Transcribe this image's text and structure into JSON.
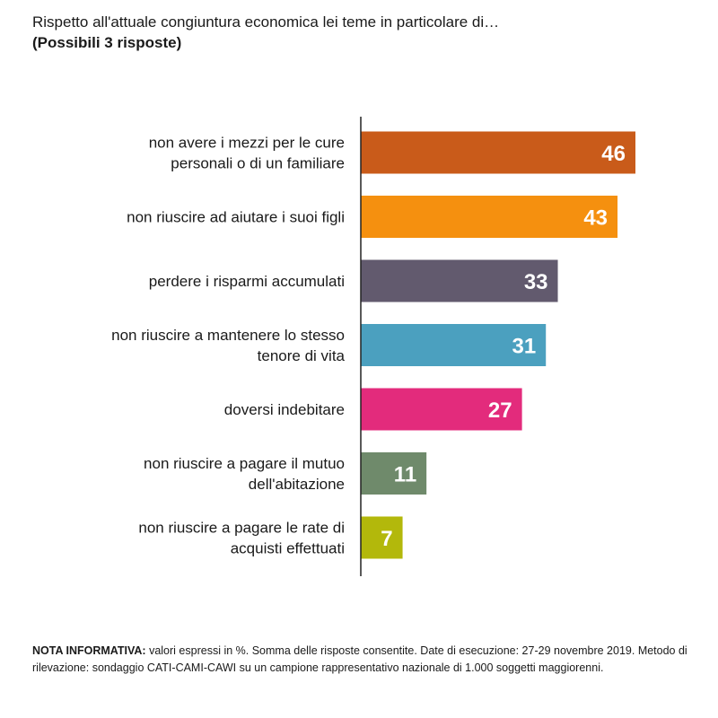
{
  "chart_data": {
    "type": "bar",
    "orientation": "horizontal",
    "title": "Rispetto all'attuale congiuntura economica lei teme in particolare di…",
    "subtitle": "(Possibili 3 risposte)",
    "categories": [
      [
        "non avere i mezzi per le cure",
        "personali o di un familiare"
      ],
      [
        "non riuscire ad aiutare i suoi figli"
      ],
      [
        "perdere i risparmi accumulati"
      ],
      [
        "non riuscire a mantenere lo stesso",
        "tenore di vita"
      ],
      [
        "doversi indebitare"
      ],
      [
        "non riuscire a pagare il mutuo",
        "dell'abitazione"
      ],
      [
        "non riuscire a pagare le rate di",
        "acquisti effettuati"
      ]
    ],
    "values": [
      46,
      43,
      33,
      31,
      27,
      11,
      7
    ],
    "colors": [
      "#c95b1a",
      "#f5900f",
      "#625a6e",
      "#4ba0bf",
      "#e32b7c",
      "#6f8a6b",
      "#b3b80b"
    ],
    "xlim": [
      0,
      46
    ],
    "grid": false,
    "legend": "none"
  },
  "note": {
    "label": "NOTA INFORMATIVA:",
    "text": " valori espressi in %. Somma delle risposte consentite. Date di esecuzione: 27-29 novembre 2019. Metodo di rilevazione: sondaggio CATI-CAMI-CAWI su un campione rappresentativo nazionale di 1.000 soggetti maggiorenni."
  }
}
